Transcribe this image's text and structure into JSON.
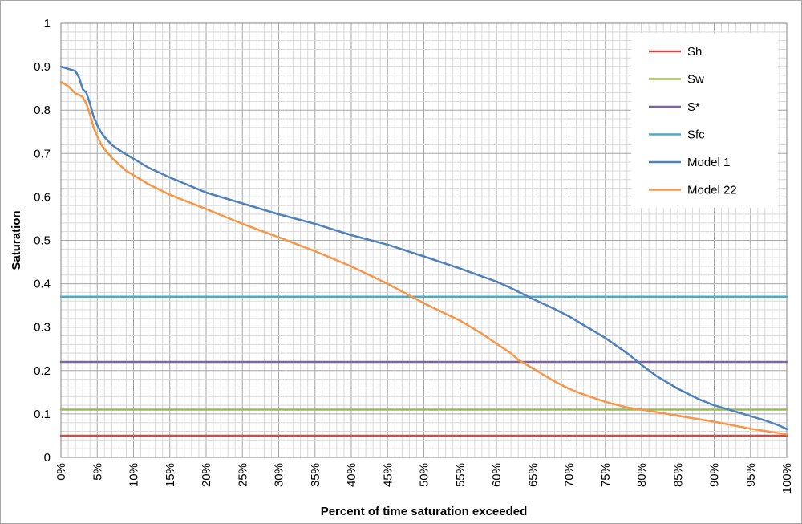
{
  "chart_data": {
    "type": "line",
    "title": "",
    "xlabel": "Percent of time saturation exceeded",
    "ylabel": "Saturation",
    "xlim": [
      0,
      100
    ],
    "ylim": [
      0,
      1
    ],
    "grid": true,
    "legend_position": "top-right",
    "x_ticks": [
      "0%",
      "5%",
      "10%",
      "15%",
      "20%",
      "25%",
      "30%",
      "35%",
      "40%",
      "45%",
      "50%",
      "55%",
      "60%",
      "65%",
      "70%",
      "75%",
      "80%",
      "85%",
      "90%",
      "95%",
      "100%"
    ],
    "y_ticks": [
      "0",
      "0.1",
      "0.2",
      "0.3",
      "0.4",
      "0.5",
      "0.6",
      "0.7",
      "0.8",
      "0.9",
      "1"
    ],
    "series": [
      {
        "name": "Sh",
        "color": "#c0504d",
        "x": [
          0,
          100
        ],
        "y": [
          0.05,
          0.05
        ]
      },
      {
        "name": "Sw",
        "color": "#9bbb59",
        "x": [
          0,
          100
        ],
        "y": [
          0.11,
          0.11
        ]
      },
      {
        "name": "S*",
        "color": "#8064a2",
        "x": [
          0,
          100
        ],
        "y": [
          0.22,
          0.22
        ]
      },
      {
        "name": "Sfc",
        "color": "#4bacc6",
        "x": [
          0,
          100
        ],
        "y": [
          0.37,
          0.37
        ]
      },
      {
        "name": "Model 1",
        "color": "#4f81bd",
        "x": [
          0,
          1,
          2,
          2.5,
          3,
          3.5,
          4,
          4.5,
          5,
          5.5,
          6,
          7,
          8,
          9,
          10,
          12,
          15,
          20,
          25,
          30,
          35,
          40,
          45,
          50,
          55,
          60,
          62,
          65,
          68,
          70,
          72,
          75,
          78,
          80,
          82,
          85,
          88,
          90,
          93,
          95,
          97,
          99,
          100
        ],
        "y": [
          0.9,
          0.895,
          0.89,
          0.875,
          0.848,
          0.84,
          0.815,
          0.785,
          0.765,
          0.75,
          0.738,
          0.72,
          0.708,
          0.698,
          0.688,
          0.668,
          0.645,
          0.61,
          0.585,
          0.56,
          0.538,
          0.512,
          0.49,
          0.463,
          0.435,
          0.405,
          0.39,
          0.365,
          0.342,
          0.325,
          0.305,
          0.275,
          0.24,
          0.213,
          0.188,
          0.158,
          0.133,
          0.12,
          0.105,
          0.095,
          0.085,
          0.073,
          0.065
        ]
      },
      {
        "name": "Model 22",
        "color": "#f79646",
        "x": [
          0,
          1,
          2,
          2.5,
          3,
          3.5,
          4,
          4.5,
          5,
          5.5,
          6,
          7,
          8,
          9,
          10,
          12,
          15,
          20,
          25,
          30,
          35,
          40,
          45,
          50,
          55,
          58,
          60,
          62,
          63,
          65,
          68,
          70,
          72,
          75,
          78,
          80,
          85,
          90,
          95,
          100
        ],
        "y": [
          0.865,
          0.855,
          0.838,
          0.835,
          0.83,
          0.815,
          0.79,
          0.76,
          0.74,
          0.722,
          0.71,
          0.69,
          0.675,
          0.66,
          0.65,
          0.63,
          0.605,
          0.572,
          0.538,
          0.507,
          0.475,
          0.44,
          0.4,
          0.355,
          0.315,
          0.285,
          0.262,
          0.24,
          0.225,
          0.205,
          0.175,
          0.158,
          0.145,
          0.128,
          0.115,
          0.11,
          0.096,
          0.082,
          0.066,
          0.053
        ]
      }
    ]
  }
}
